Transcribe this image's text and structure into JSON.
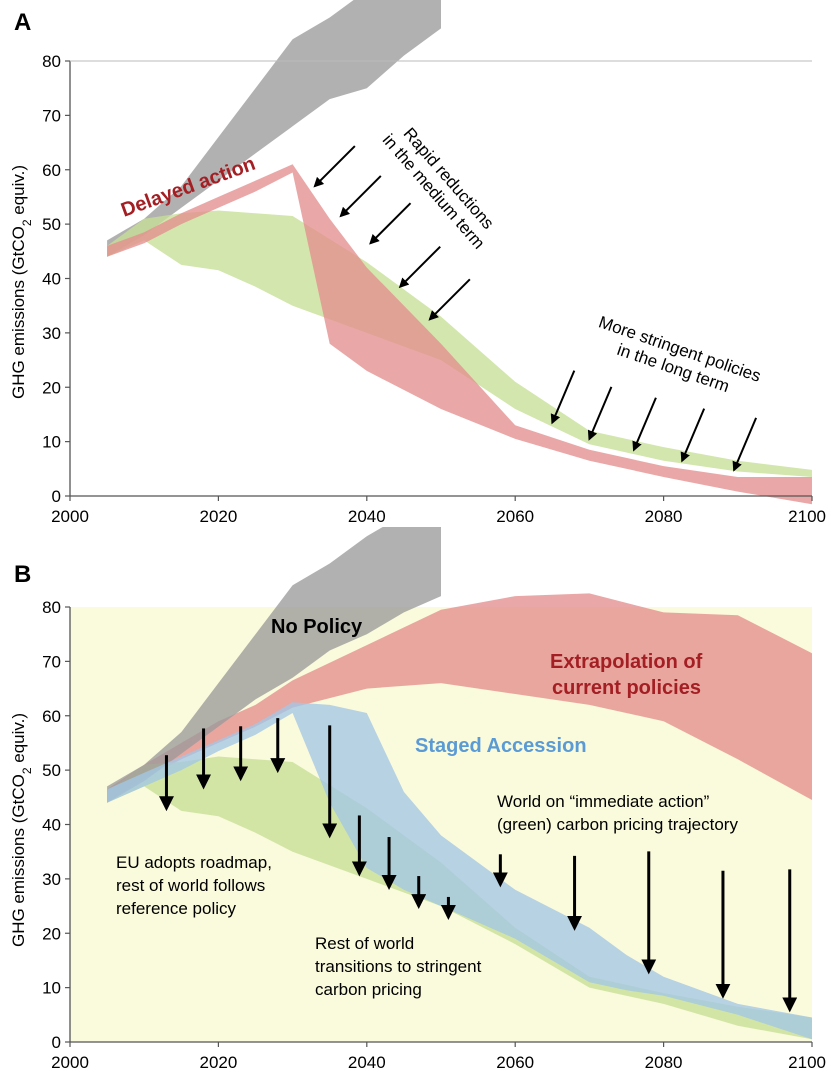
{
  "chart_data": [
    {
      "panel": "A",
      "type": "area",
      "ylabel": "GHG emissions (GtCO2 equiv.)",
      "xlim": [
        2000,
        2100
      ],
      "ylim": [
        0,
        80
      ],
      "xticks": [
        "2000",
        "2020",
        "2040",
        "2060",
        "2080",
        "2100"
      ],
      "yticks": [
        "0",
        "10",
        "20",
        "30",
        "40",
        "50",
        "60",
        "70",
        "80"
      ],
      "grid": false,
      "background": "#ffffff",
      "bands": [
        {
          "color": "#9b9b9b",
          "x": [
            2005,
            2010,
            2015,
            2020,
            2025,
            2030,
            2035,
            2040,
            2045,
            2050
          ],
          "lower": [
            44,
            48,
            53,
            58,
            63,
            68,
            73,
            75,
            81,
            86
          ],
          "upper": [
            47,
            51,
            57,
            66,
            75,
            84,
            88,
            93,
            97,
            100
          ]
        },
        {
          "color": "#c6df96",
          "x": [
            2005,
            2010,
            2015,
            2020,
            2025,
            2030,
            2040,
            2050,
            2060,
            2070,
            2080,
            2090,
            2100
          ],
          "lower": [
            44,
            47,
            42.5,
            41.5,
            38.5,
            35,
            30,
            25,
            16,
            9.5,
            6.5,
            4.5,
            3.5
          ],
          "upper": [
            46,
            51,
            52,
            52.5,
            52,
            51.5,
            43,
            33,
            21,
            12,
            9,
            6.5,
            4.8
          ]
        },
        {
          "color": "#e48e8e",
          "x": [
            2005,
            2010,
            2015,
            2020,
            2025,
            2030,
            2035,
            2040,
            2050,
            2060,
            2070,
            2080,
            2090,
            2100
          ],
          "lower": [
            44,
            46.5,
            50,
            53,
            56,
            59.5,
            28,
            23,
            16,
            10.5,
            6.5,
            3.5,
            0.8,
            -1.5
          ],
          "upper": [
            46,
            48.5,
            52,
            55,
            58,
            61,
            51,
            42,
            28,
            13,
            8.5,
            5.5,
            3.5,
            3.5
          ]
        }
      ],
      "labels": [
        {
          "text": "Delayed action",
          "color": "#a31f24"
        }
      ],
      "annotations": [
        {
          "lines": [
            "Rapid reductions",
            "in the medium term"
          ],
          "arrows": [
            [
              2033,
              57
            ],
            [
              2036.5,
              51.5
            ],
            [
              2040.5,
              46.5
            ],
            [
              2044.5,
              38.5
            ],
            [
              2048.5,
              32.5
            ]
          ]
        },
        {
          "lines": [
            "More stringent policies",
            "in the long term"
          ],
          "arrows": [
            [
              2065,
              13.5
            ],
            [
              2070,
              10.5
            ],
            [
              2076,
              8.5
            ],
            [
              2082.5,
              6.5
            ],
            [
              2089.5,
              4.8
            ]
          ]
        }
      ]
    },
    {
      "panel": "B",
      "type": "area",
      "ylabel": "GHG emissions (GtCO2 equiv.)",
      "xlim": [
        2000,
        2100
      ],
      "ylim": [
        0,
        80
      ],
      "xticks": [
        "2000",
        "2020",
        "2040",
        "2060",
        "2080",
        "2100"
      ],
      "yticks": [
        "0",
        "10",
        "20",
        "30",
        "40",
        "50",
        "60",
        "70",
        "80"
      ],
      "grid": false,
      "background": "#fafadc",
      "bands": [
        {
          "name": "Extrapolation of current policies",
          "color": "#e48e8e",
          "x": [
            2005,
            2010,
            2015,
            2020,
            2025,
            2030,
            2040,
            2050,
            2060,
            2070,
            2080,
            2090,
            2100
          ],
          "lower": [
            44,
            48.5,
            52,
            55,
            58,
            61.5,
            65,
            66,
            64,
            62,
            59,
            52,
            44.5
          ],
          "upper": [
            46.5,
            51,
            55,
            59,
            62,
            66.5,
            73,
            79.5,
            82,
            82.5,
            79,
            78.5,
            71.5
          ]
        },
        {
          "color": "#c6df96",
          "x": [
            2005,
            2010,
            2015,
            2020,
            2025,
            2030,
            2040,
            2050,
            2060,
            2070,
            2080,
            2090,
            2100
          ],
          "lower": [
            44,
            47,
            42.5,
            41.5,
            38.5,
            35,
            30,
            25,
            18,
            10,
            7,
            3,
            0.5
          ],
          "upper": [
            46,
            51,
            51.5,
            52.5,
            52,
            51.5,
            43,
            33,
            21,
            12,
            9,
            6.5,
            4.5
          ]
        },
        {
          "name": "No Policy",
          "color": "#9b9b9b",
          "x": [
            2005,
            2010,
            2015,
            2020,
            2025,
            2030,
            2035,
            2040,
            2045,
            2050
          ],
          "lower": [
            44,
            48,
            53,
            58,
            63,
            67,
            72,
            75,
            79,
            82
          ],
          "upper": [
            47,
            51,
            57,
            66,
            75,
            84,
            88,
            93,
            97,
            100
          ]
        },
        {
          "name": "Staged Accession",
          "color": "#a3c7e6",
          "x": [
            2005,
            2010,
            2015,
            2020,
            2025,
            2030,
            2035,
            2040,
            2045,
            2050,
            2060,
            2070,
            2075,
            2080,
            2090,
            2100
          ],
          "lower": [
            44,
            47,
            50,
            53.5,
            56.5,
            60.5,
            44,
            32,
            28,
            25,
            19,
            11,
            9.5,
            8.5,
            5,
            0.5
          ],
          "upper": [
            46.5,
            49.5,
            52.5,
            55.5,
            58.5,
            62.5,
            62,
            60.5,
            46,
            38,
            28,
            21,
            16,
            12,
            7,
            4.5
          ]
        }
      ],
      "labels": [
        {
          "text": "No Policy",
          "color": "#000000"
        },
        {
          "text": "Extrapolation of",
          "color": "#a31f24"
        },
        {
          "text": "current policies",
          "color": "#a31f24"
        },
        {
          "text": "Staged Accession",
          "color": "#5b9bd5"
        }
      ],
      "annotations": [
        {
          "lines": [
            "EU adopts roadmap,",
            "rest of world follows",
            "reference policy"
          ],
          "arrows": [
            [
              2013,
              43
            ],
            [
              2018,
              47
            ],
            [
              2023,
              48.5
            ],
            [
              2028,
              50
            ]
          ]
        },
        {
          "lines": [
            "Rest of world",
            "transitions to stringent",
            "carbon pricing"
          ],
          "arrows": [
            [
              2035,
              38
            ],
            [
              2039,
              31
            ],
            [
              2043,
              28.5
            ],
            [
              2047,
              25
            ],
            [
              2051,
              23
            ]
          ]
        },
        {
          "lines": [
            "World on “immediate action”",
            "(green) carbon pricing trajectory"
          ],
          "arrows": [
            [
              2058,
              29
            ],
            [
              2068,
              21
            ],
            [
              2078,
              13
            ],
            [
              2088,
              8.5
            ],
            [
              2097,
              6
            ]
          ]
        }
      ]
    }
  ]
}
